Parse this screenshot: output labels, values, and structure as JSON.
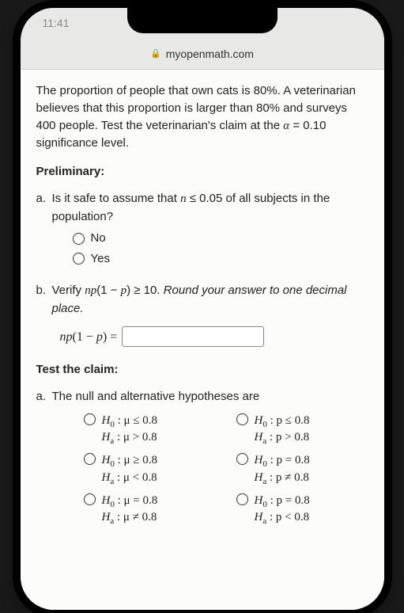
{
  "status": {
    "time": "11:41"
  },
  "browser": {
    "url": "myopenmath.com"
  },
  "question": {
    "intro_parts": {
      "p1": "The proportion of people that own cats is 80%. A veterinarian believes that this proportion is larger than 80% and surveys 400 people. Test the veterinarian's claim at the ",
      "alpha_var": "α",
      "alpha_eq": " = 0.10",
      "p2": " significance level."
    },
    "preliminary_label": "Preliminary:",
    "part_a": {
      "letter": "a.",
      "text_pre": "Is it safe to assume that ",
      "math_n": "n",
      "math_expr": " ≤ 0.05",
      "text_post": " of all subjects in the population?",
      "options": {
        "no": "No",
        "yes": "Yes"
      }
    },
    "part_b": {
      "letter": "b.",
      "text_pre": "Verify ",
      "math_np": "np",
      "math_expr1": "(1 − ",
      "math_p": "p",
      "math_expr2": ") ≥ 10",
      "text_post": ". ",
      "note": "Round your answer to one decimal place.",
      "formula_lhs_np": "np",
      "formula_lhs_mid": "(1 − ",
      "formula_lhs_p": "p",
      "formula_lhs_end": ") ="
    },
    "test_label": "Test the claim:",
    "part_c": {
      "letter": "a.",
      "text": "The null and alternative hypotheses are"
    },
    "hypotheses": {
      "h0_label": "H",
      "h0_sub": "0",
      "ha_label": "H",
      "ha_sub": "a",
      "mu": "μ",
      "p": "p",
      "opts": [
        {
          "h0": " : μ ≤ 0.8",
          "ha": " : μ > 0.8"
        },
        {
          "h0": " : p ≤ 0.8",
          "ha": " : p > 0.8"
        },
        {
          "h0": " : μ ≥ 0.8",
          "ha": " : μ < 0.8"
        },
        {
          "h0": " : p = 0.8",
          "ha": " : p ≠ 0.8"
        },
        {
          "h0": " : μ = 0.8",
          "ha": " : μ ≠ 0.8"
        },
        {
          "h0": " : p = 0.8",
          "ha": " : p < 0.8"
        }
      ]
    }
  }
}
